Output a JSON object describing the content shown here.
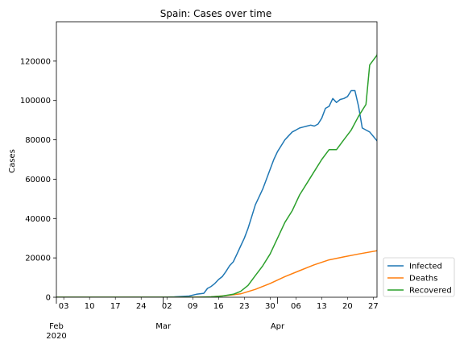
{
  "chart_data": {
    "type": "line",
    "title": "Spain: Cases over time",
    "xlabel": "",
    "ylabel": "Cases",
    "xlim": [
      "2020-02-01",
      "2020-04-28"
    ],
    "ylim": [
      0,
      140000
    ],
    "grid": false,
    "legend_position": "outside-lower-right",
    "y_ticks": [
      0,
      20000,
      40000,
      60000,
      80000,
      100000,
      120000
    ],
    "y_tick_labels": [
      "0",
      "20000",
      "40000",
      "60000",
      "80000",
      "100000",
      "120000"
    ],
    "x_minor_ticks": [
      "2020-02-03",
      "2020-02-10",
      "2020-02-17",
      "2020-02-24",
      "2020-03-02",
      "2020-03-09",
      "2020-03-16",
      "2020-03-23",
      "2020-03-30",
      "2020-04-06",
      "2020-04-13",
      "2020-04-20",
      "2020-04-27"
    ],
    "x_minor_labels": [
      "03",
      "10",
      "17",
      "24",
      "02",
      "09",
      "16",
      "23",
      "30",
      "06",
      "13",
      "20",
      "27"
    ],
    "x_major_ticks": [
      "2020-02-01",
      "2020-03-01",
      "2020-04-01"
    ],
    "x_major_labels": [
      "Feb\n2020",
      "Mar",
      "Apr"
    ],
    "series": [
      {
        "name": "Infected",
        "color": "#1f77b4",
        "x": [
          "2020-02-01",
          "2020-02-29",
          "2020-03-02",
          "2020-03-04",
          "2020-03-06",
          "2020-03-08",
          "2020-03-10",
          "2020-03-12",
          "2020-03-13",
          "2020-03-14",
          "2020-03-15",
          "2020-03-16",
          "2020-03-17",
          "2020-03-18",
          "2020-03-19",
          "2020-03-20",
          "2020-03-21",
          "2020-03-22",
          "2020-03-23",
          "2020-03-24",
          "2020-03-25",
          "2020-03-26",
          "2020-03-27",
          "2020-03-28",
          "2020-03-29",
          "2020-03-30",
          "2020-03-31",
          "2020-04-01",
          "2020-04-02",
          "2020-04-03",
          "2020-04-04",
          "2020-04-05",
          "2020-04-06",
          "2020-04-07",
          "2020-04-08",
          "2020-04-09",
          "2020-04-10",
          "2020-04-11",
          "2020-04-12",
          "2020-04-13",
          "2020-04-14",
          "2020-04-15",
          "2020-04-16",
          "2020-04-17",
          "2020-04-18",
          "2020-04-19",
          "2020-04-20",
          "2020-04-21",
          "2020-04-22",
          "2020-04-23",
          "2020-04-24",
          "2020-04-25",
          "2020-04-26",
          "2020-04-28",
          "2020-04-29"
        ],
        "y": [
          0,
          50,
          100,
          200,
          400,
          600,
          1500,
          2000,
          4500,
          5500,
          7000,
          9000,
          10500,
          13000,
          16000,
          18000,
          22000,
          26000,
          30000,
          35000,
          41000,
          47000,
          51000,
          55000,
          60000,
          65000,
          70000,
          74000,
          77000,
          80000,
          82000,
          84000,
          85000,
          86000,
          86500,
          87000,
          87500,
          87000,
          88000,
          91000,
          96000,
          97000,
          101000,
          99000,
          100500,
          101000,
          102000,
          105000,
          105000,
          97000,
          86000,
          85000,
          84000,
          79500,
          79500
        ]
      },
      {
        "name": "Deaths",
        "color": "#ff7f0e",
        "x": [
          "2020-02-01",
          "2020-03-08",
          "2020-03-14",
          "2020-03-18",
          "2020-03-22",
          "2020-03-26",
          "2020-03-30",
          "2020-04-03",
          "2020-04-07",
          "2020-04-11",
          "2020-04-15",
          "2020-04-19",
          "2020-04-23",
          "2020-04-29"
        ],
        "y": [
          0,
          0,
          200,
          800,
          1700,
          4000,
          7000,
          10500,
          13500,
          16500,
          19000,
          20500,
          22000,
          24000
        ]
      },
      {
        "name": "Recovered",
        "color": "#2ca02c",
        "x": [
          "2020-02-01",
          "2020-03-10",
          "2020-03-14",
          "2020-03-17",
          "2020-03-20",
          "2020-03-22",
          "2020-03-24",
          "2020-03-26",
          "2020-03-28",
          "2020-03-30",
          "2020-04-01",
          "2020-04-03",
          "2020-04-05",
          "2020-04-07",
          "2020-04-09",
          "2020-04-11",
          "2020-04-13",
          "2020-04-15",
          "2020-04-17",
          "2020-04-19",
          "2020-04-21",
          "2020-04-23",
          "2020-04-25",
          "2020-04-26",
          "2020-04-28",
          "2020-04-29"
        ],
        "y": [
          0,
          0,
          200,
          600,
          1500,
          3000,
          6000,
          11000,
          16000,
          22000,
          30000,
          38000,
          44000,
          52000,
          58000,
          64000,
          70000,
          75000,
          75000,
          80000,
          85000,
          92000,
          98000,
          118000,
          123000,
          133000
        ]
      }
    ]
  }
}
